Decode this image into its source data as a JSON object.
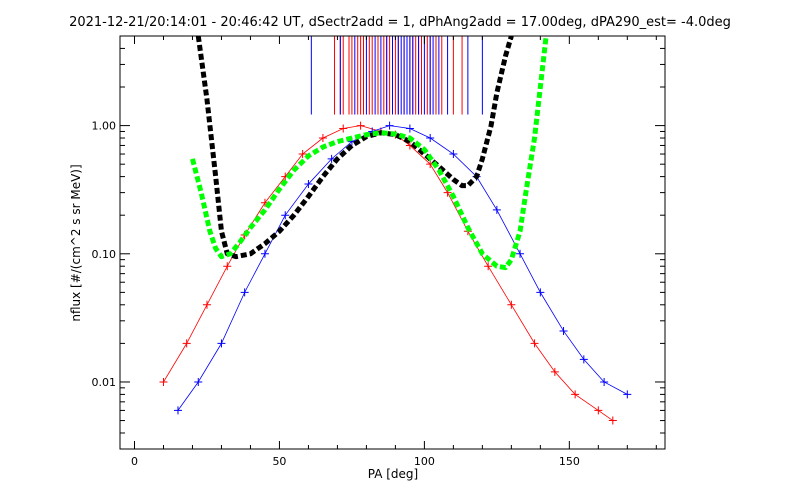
{
  "chart_data": {
    "type": "line",
    "title": "2021-12-21/20:14:01 - 20:46:42 UT, dSectr2add = 1, dPhAng2add = 17.00deg, dPA290_est=  -4.0deg",
    "xlabel": "PA [deg]",
    "ylabel": "nflux [#/(cm^2 s sr MeV)]",
    "xlim": [
      -5,
      183
    ],
    "ylim": [
      0.003,
      5.0
    ],
    "yscale": "log",
    "xticks": [
      0,
      50,
      100,
      150
    ],
    "xtick_labels": [
      "0",
      "50",
      "100",
      "150"
    ],
    "yticks": [
      0.01,
      0.1,
      1.0
    ],
    "ytick_labels": [
      "0.01",
      "0.10",
      "1.00"
    ],
    "grid": false,
    "colors": {
      "red": "#ff0000",
      "blue": "#0000ff",
      "black": "#000000",
      "green": "#00ff00"
    },
    "series": [
      {
        "color": "red",
        "style": "thin-line-plus",
        "x": [
          10,
          18,
          25,
          32,
          38,
          45,
          52,
          58,
          65,
          72,
          78,
          85,
          90,
          95,
          102,
          108,
          115,
          122,
          130,
          138,
          145,
          152,
          160,
          165
        ],
        "y": [
          0.01,
          0.02,
          0.04,
          0.08,
          0.14,
          0.25,
          0.4,
          0.6,
          0.8,
          0.95,
          1.0,
          0.9,
          0.85,
          0.7,
          0.5,
          0.3,
          0.15,
          0.08,
          0.04,
          0.02,
          0.012,
          0.008,
          0.006,
          0.005
        ]
      },
      {
        "color": "blue",
        "style": "thin-line-plus",
        "x": [
          15,
          22,
          30,
          38,
          45,
          52,
          60,
          68,
          75,
          82,
          88,
          95,
          102,
          110,
          118,
          125,
          133,
          140,
          148,
          155,
          162,
          170
        ],
        "y": [
          0.006,
          0.01,
          0.02,
          0.05,
          0.1,
          0.2,
          0.35,
          0.55,
          0.75,
          0.9,
          1.0,
          0.95,
          0.8,
          0.6,
          0.4,
          0.22,
          0.1,
          0.05,
          0.025,
          0.015,
          0.01,
          0.008
        ]
      },
      {
        "color": "black",
        "style": "thick-dashed",
        "x": [
          22,
          25,
          28,
          30,
          32,
          35,
          40,
          45,
          50,
          55,
          60,
          65,
          70,
          75,
          80,
          85,
          90,
          95,
          100,
          105,
          110,
          113,
          115,
          118,
          120,
          123,
          125,
          128,
          130
        ],
        "y": [
          5.0,
          1.6,
          0.4,
          0.15,
          0.1,
          0.095,
          0.1,
          0.12,
          0.15,
          0.2,
          0.28,
          0.4,
          0.55,
          0.7,
          0.82,
          0.88,
          0.85,
          0.75,
          0.6,
          0.48,
          0.38,
          0.34,
          0.34,
          0.4,
          0.55,
          1.0,
          1.8,
          3.5,
          5.0
        ]
      },
      {
        "color": "green",
        "style": "thick-dashed",
        "x": [
          20,
          23,
          26,
          28,
          30,
          33,
          36,
          40,
          45,
          50,
          55,
          60,
          65,
          70,
          75,
          80,
          85,
          90,
          95,
          100,
          105,
          110,
          115,
          120,
          125,
          128,
          130,
          133,
          135,
          138,
          140,
          142
        ],
        "y": [
          0.55,
          0.3,
          0.15,
          0.11,
          0.095,
          0.1,
          0.12,
          0.16,
          0.22,
          0.32,
          0.45,
          0.58,
          0.68,
          0.75,
          0.8,
          0.85,
          0.88,
          0.86,
          0.8,
          0.65,
          0.45,
          0.28,
          0.16,
          0.1,
          0.08,
          0.078,
          0.09,
          0.15,
          0.3,
          0.8,
          2.0,
          5.0
        ]
      }
    ],
    "marker_lines": {
      "y_bottom": 1.22,
      "red_x": [
        69,
        71,
        72,
        74,
        75,
        77,
        78,
        79,
        81,
        82,
        84,
        86,
        87,
        88,
        90,
        91,
        93,
        95,
        96,
        97,
        98,
        99,
        101,
        102,
        104,
        106,
        110,
        113
      ],
      "blue_x": [
        61,
        71,
        76,
        80,
        83,
        85,
        87,
        89,
        91,
        92,
        93,
        94,
        95,
        96,
        98,
        100,
        102,
        103,
        105,
        108,
        115,
        120
      ]
    }
  }
}
